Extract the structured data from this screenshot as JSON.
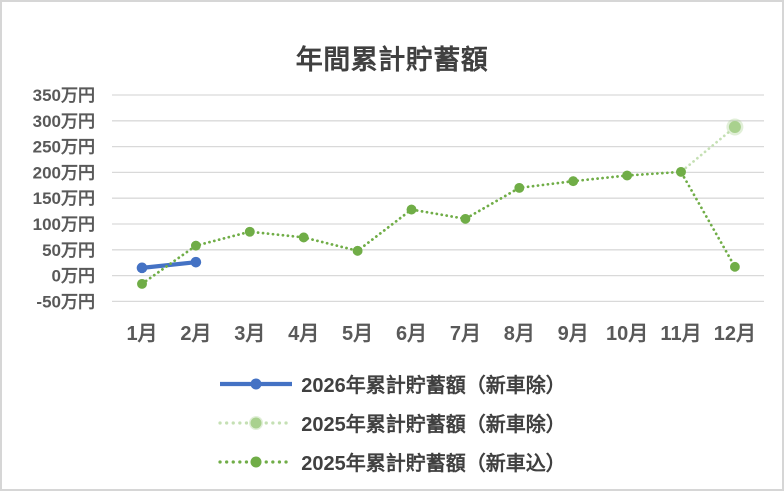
{
  "chart_data": {
    "type": "line",
    "title": "年間累計貯蓄額",
    "categories": [
      "1月",
      "2月",
      "3月",
      "4月",
      "5月",
      "6月",
      "7月",
      "8月",
      "9月",
      "10月",
      "11月",
      "12月"
    ],
    "y_axis": {
      "unit": "万円",
      "range": [
        -50,
        350
      ],
      "ticks": [
        {
          "label": "350万円",
          "value": 350
        },
        {
          "label": "300万円",
          "value": 300
        },
        {
          "label": "250万円",
          "value": 250
        },
        {
          "label": "200万円",
          "value": 200
        },
        {
          "label": "150万円",
          "value": 150
        },
        {
          "label": "100万円",
          "value": 100
        },
        {
          "label": "50万円",
          "value": 50
        },
        {
          "label": "0万円",
          "value": 0
        },
        {
          "label": "-50万円",
          "value": -50
        }
      ]
    },
    "grid": true,
    "legend_position": "bottom",
    "colors": {
      "grid": "#D9D9D9",
      "axis_text": "#595959",
      "title_text": "#404040"
    },
    "series": [
      {
        "name": "2026年累計貯蓄額（新車除）",
        "style": "solid",
        "color": "#4472C4",
        "marker_color": "#4472C4",
        "values": [
          15,
          26,
          null,
          null,
          null,
          null,
          null,
          null,
          null,
          null,
          null,
          null
        ]
      },
      {
        "name": "2025年累計貯蓄額（新車除）",
        "style": "dotted",
        "color": "#C5E0B4",
        "marker_color": "#A9D18E",
        "values": [
          -16,
          58,
          85,
          74,
          48,
          128,
          110,
          170,
          183,
          194,
          201,
          288
        ]
      },
      {
        "name": "2025年累計貯蓄額（新車込）",
        "style": "dotted",
        "color": "#70AD47",
        "marker_color": "#70AD47",
        "values": [
          -16,
          58,
          85,
          74,
          48,
          128,
          110,
          170,
          183,
          194,
          201,
          17
        ]
      }
    ]
  }
}
